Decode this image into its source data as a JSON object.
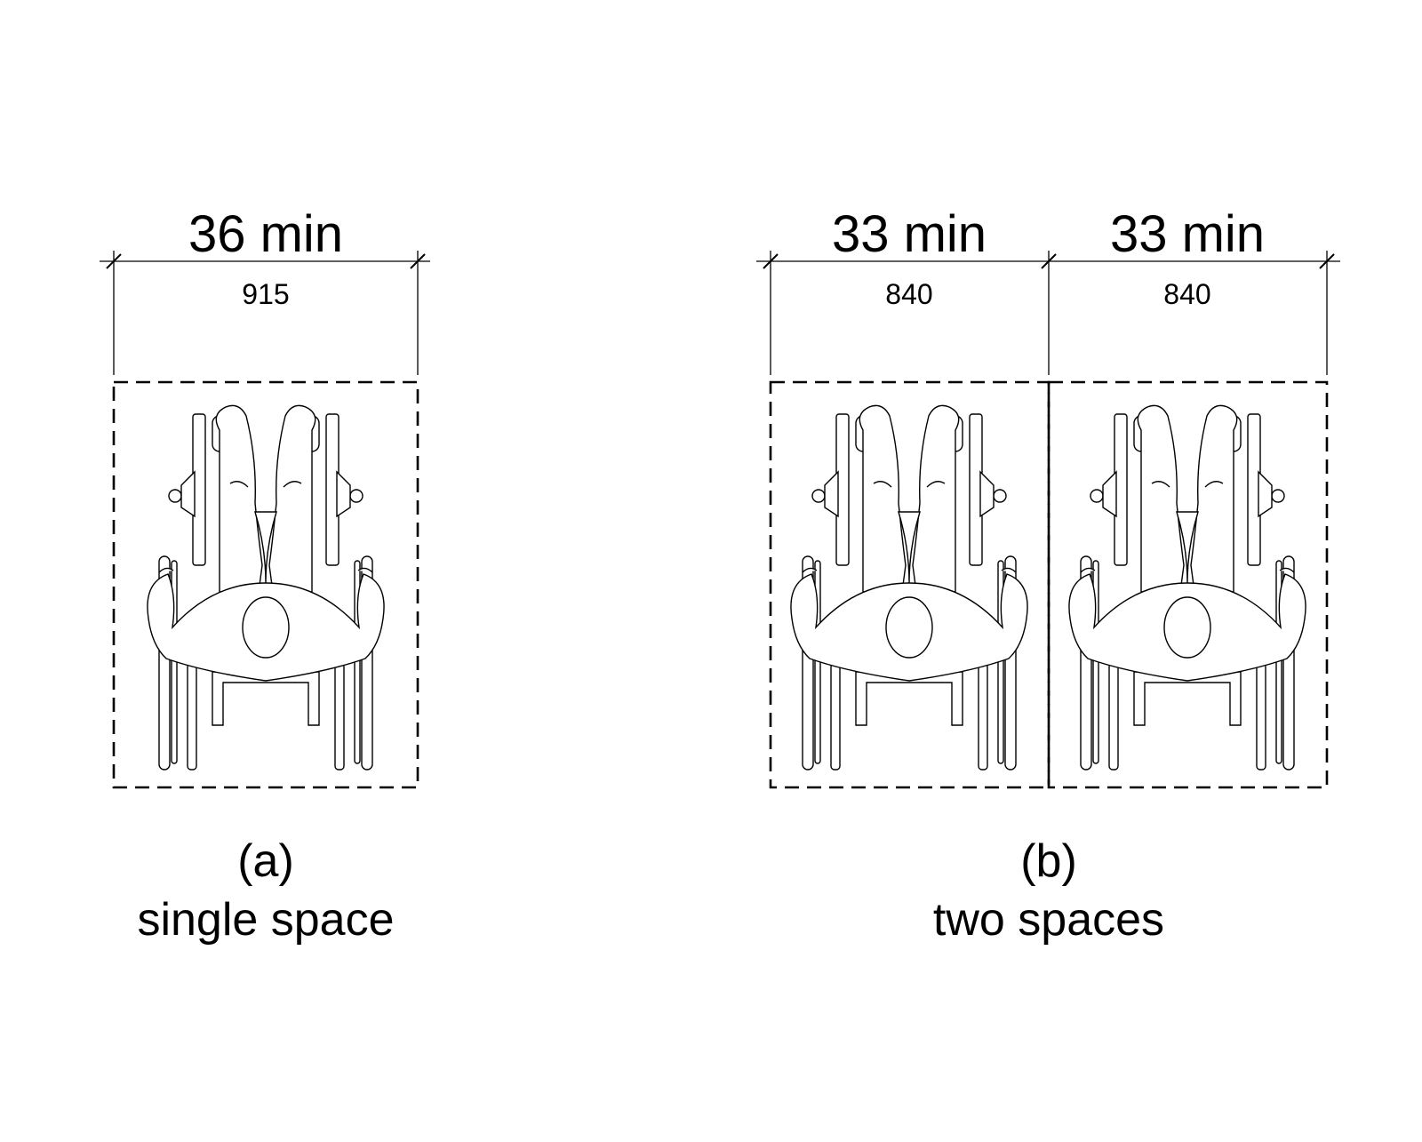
{
  "figure_a": {
    "dimension": {
      "label": "36 min",
      "metric": "915"
    },
    "caption": {
      "letter": "(a)",
      "text": "single space"
    }
  },
  "figure_b": {
    "dimensions": [
      {
        "label": "33 min",
        "metric": "840"
      },
      {
        "label": "33 min",
        "metric": "840"
      }
    ],
    "caption": {
      "letter": "(b)",
      "text": "two spaces"
    }
  },
  "icons": {
    "wheelchair": "wheelchair-user-top-view-icon"
  }
}
